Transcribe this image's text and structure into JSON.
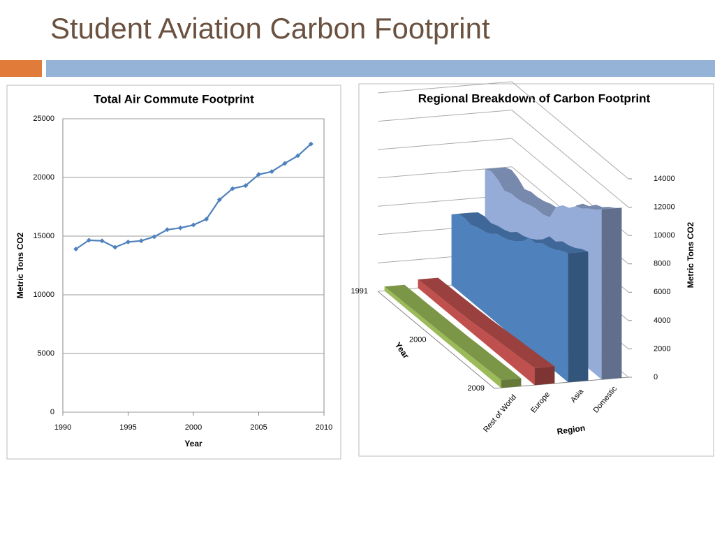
{
  "title": "Student Aviation Carbon Footprint",
  "chart_data": [
    {
      "type": "line",
      "title": "Total Air Commute Footprint",
      "x": [
        1991,
        1992,
        1993,
        1994,
        1995,
        1996,
        1997,
        1998,
        1999,
        2000,
        2001,
        2002,
        2003,
        2004,
        2005,
        2006,
        2007,
        2008,
        2009
      ],
      "values": [
        13900,
        14650,
        14600,
        14050,
        14500,
        14600,
        14950,
        15550,
        15700,
        15950,
        16450,
        18100,
        19050,
        19300,
        20250,
        20500,
        21200,
        21850,
        22850
      ],
      "color": "#4f81bd",
      "xlim": [
        1990,
        2010
      ],
      "xticks": [
        1990,
        1995,
        2000,
        2005,
        2010
      ],
      "ylim": [
        0,
        25000
      ],
      "yticks": [
        0,
        5000,
        10000,
        15000,
        20000,
        25000
      ],
      "grid": true,
      "xlabel": "Year",
      "ylabel": "Metric Tons CO2"
    },
    {
      "type": "area3d",
      "title": "Regional Breakdown of Carbon Footprint",
      "categories": [
        "1991",
        null,
        null,
        null,
        null,
        null,
        null,
        null,
        null,
        "2000",
        null,
        null,
        null,
        null,
        null,
        null,
        null,
        null,
        "2009"
      ],
      "series": [
        {
          "name": "Rest of World",
          "color": "#9bbb59",
          "values": [
            300,
            310,
            320,
            320,
            330,
            340,
            350,
            360,
            370,
            380,
            390,
            420,
            440,
            460,
            480,
            500,
            520,
            540,
            550
          ]
        },
        {
          "name": "Europe",
          "color": "#c0504d",
          "values": [
            600,
            620,
            640,
            650,
            670,
            690,
            700,
            740,
            760,
            800,
            850,
            900,
            950,
            980,
            1020,
            1060,
            1100,
            1150,
            1200
          ]
        },
        {
          "name": "Asia",
          "color": "#4f81bd",
          "values": [
            5000,
            5400,
            5500,
            5400,
            5600,
            5700,
            5900,
            6300,
            6400,
            6600,
            6900,
            7300,
            7900,
            7900,
            8300,
            8400,
            8600,
            8900,
            9100
          ]
        },
        {
          "name": "Domestic",
          "color": "#95abd8",
          "values": [
            8000,
            8200,
            8000,
            7600,
            7800,
            7800,
            7900,
            8100,
            8200,
            8200,
            8400,
            9500,
            10000,
            10200,
            10700,
            10900,
            11300,
            11600,
            12000
          ]
        }
      ],
      "zlim": [
        0,
        14000
      ],
      "zticks": [
        0,
        2000,
        4000,
        6000,
        8000,
        10000,
        12000,
        14000
      ],
      "grid": true,
      "xlabel": "Year",
      "ylabel": "Region",
      "zlabel": "Metric Tons CO2"
    }
  ]
}
